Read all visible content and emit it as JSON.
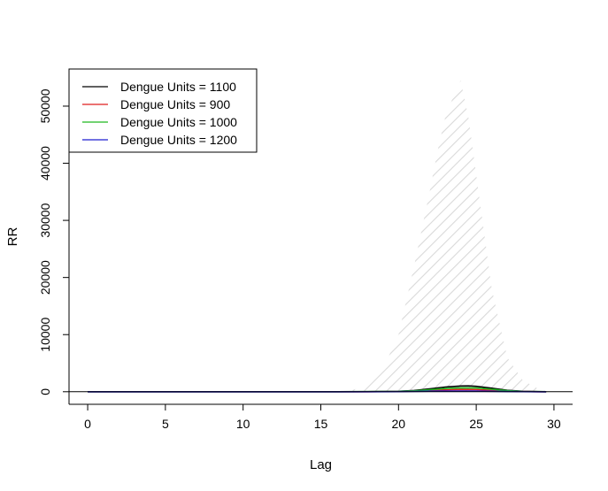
{
  "chart_data": {
    "type": "line",
    "title": "",
    "xlabel": "Lag",
    "ylabel": "RR",
    "xlim": [
      -1.2,
      31.2
    ],
    "ylim": [
      -2200,
      56500
    ],
    "x_ticks": [
      0,
      5,
      10,
      15,
      20,
      25,
      30
    ],
    "y_ticks": [
      0,
      10000,
      20000,
      30000,
      40000,
      50000
    ],
    "reference_line": 0,
    "legend": {
      "position": "top-left",
      "box": true
    },
    "confidence_band": {
      "style": "hatched",
      "color": "#d9d9d9",
      "x": [
        0,
        16,
        17,
        18,
        19,
        20,
        21,
        22,
        22.5,
        23,
        23.5,
        24,
        24.5,
        25,
        25.5,
        26,
        27,
        28,
        29,
        29.5
      ],
      "upper": [
        0,
        0,
        300,
        1000,
        4000,
        10000,
        22000,
        35000,
        42000,
        48000,
        51500,
        54500,
        48000,
        38000,
        28000,
        18000,
        6000,
        2000,
        500,
        100
      ],
      "lower": [
        0,
        0,
        0,
        0,
        0,
        0,
        0,
        0,
        0,
        0,
        0,
        0,
        0,
        0,
        0,
        0,
        0,
        0,
        0,
        0
      ]
    },
    "series": [
      {
        "name": "Dengue Units = 1100",
        "color": "#000000",
        "x": [
          0,
          16,
          18,
          20,
          21,
          22,
          23,
          24,
          24.5,
          25,
          26,
          27,
          28,
          29,
          29.5
        ],
        "y": [
          0,
          0,
          10,
          80,
          220,
          500,
          820,
          1000,
          1020,
          950,
          620,
          250,
          70,
          10,
          0
        ]
      },
      {
        "name": "Dengue Units = 900",
        "color": "#df1f1f",
        "x": [
          0,
          16,
          18,
          20,
          21,
          22,
          23,
          24,
          25,
          26,
          27,
          28,
          29,
          29.5
        ],
        "y": [
          0,
          0,
          5,
          40,
          110,
          220,
          330,
          390,
          370,
          260,
          110,
          30,
          5,
          0
        ]
      },
      {
        "name": "Dengue Units = 1000",
        "color": "#1fb81f",
        "x": [
          0,
          16,
          18,
          20,
          21,
          22,
          23,
          24,
          25,
          26,
          27,
          28,
          29,
          29.5
        ],
        "y": [
          0,
          0,
          8,
          60,
          160,
          350,
          560,
          680,
          650,
          440,
          180,
          50,
          8,
          0
        ]
      },
      {
        "name": "Dengue Units = 1200",
        "color": "#1f1fd0",
        "x": [
          0,
          16,
          18,
          20,
          21,
          22,
          23,
          24,
          25,
          26,
          27,
          28,
          29,
          29.5
        ],
        "y": [
          0,
          0,
          3,
          20,
          50,
          90,
          120,
          130,
          115,
          75,
          30,
          8,
          1,
          0
        ]
      }
    ]
  }
}
